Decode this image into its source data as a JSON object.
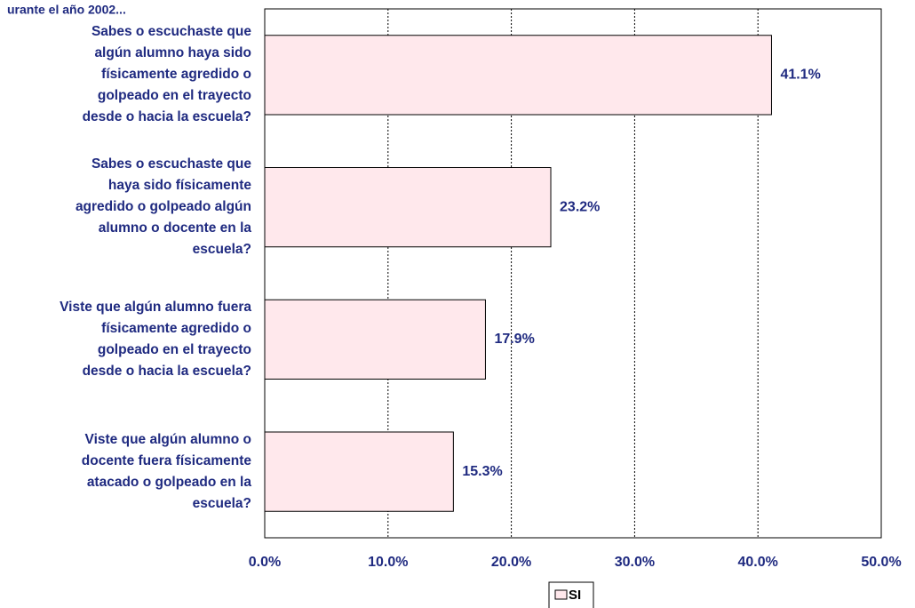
{
  "chart_data": {
    "type": "bar",
    "orientation": "horizontal",
    "title": "urante el año 2002...",
    "categories": [
      "Sabes o escuchaste que\nalgún alumno haya sido\nfísicamente agredido o\ngolpeado en el trayecto\ndesde o hacia la escuela?",
      "Sabes o escuchaste que\nhaya sido físicamente\nagredido o golpeado algún\nalumno o docente en la\nescuela?",
      "Viste que algún alumno fuera\nfísicamente agredido o\ngolpeado en el trayecto\ndesde o hacia la escuela?",
      "Viste que algún alumno o\ndocente fuera físicamente\natacado o golpeado en la\nescuela?"
    ],
    "series": [
      {
        "name": "SI",
        "color": "#ffe8ec",
        "values": [
          41.1,
          23.2,
          17.9,
          15.3
        ],
        "value_labels": [
          "41.1%",
          "23.2%",
          "17.9%",
          "15.3%"
        ]
      }
    ],
    "xlim": [
      0,
      50
    ],
    "xticks": [
      {
        "value": 0,
        "label": "0.0%"
      },
      {
        "value": 10,
        "label": "10.0%"
      },
      {
        "value": 20,
        "label": "20.0%"
      },
      {
        "value": 30,
        "label": "30.0%"
      },
      {
        "value": 40,
        "label": "40.0%"
      },
      {
        "value": 50,
        "label": "50.0%"
      }
    ],
    "grid": true,
    "legend": "bottom"
  }
}
